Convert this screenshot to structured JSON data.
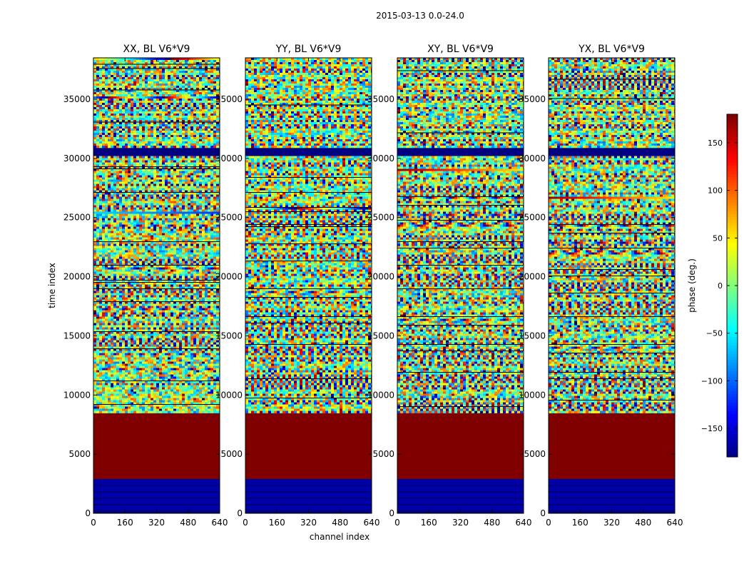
{
  "chart_data": {
    "type": "heatmap",
    "suptitle": "2015-03-13 0.0-24.0",
    "xlabel": "channel index",
    "ylabel": "time index",
    "xlim": [
      0,
      640
    ],
    "ylim": [
      0,
      38500
    ],
    "xticks": [
      0,
      160,
      320,
      480,
      640
    ],
    "yticks": [
      0,
      5000,
      10000,
      15000,
      20000,
      25000,
      30000,
      35000
    ],
    "panels": [
      {
        "title": "XX, BL V6*V9",
        "polarization": "XX"
      },
      {
        "title": "YY, BL V6*V9",
        "polarization": "YY"
      },
      {
        "title": "XY, BL V6*V9",
        "polarization": "XY"
      },
      {
        "title": "YX, BL V6*V9",
        "polarization": "YX"
      }
    ],
    "colorbar": {
      "label": "phase (deg.)",
      "colormap": "jet",
      "range": [
        -180,
        180
      ],
      "ticks": [
        -150,
        -100,
        -50,
        0,
        50,
        100,
        150
      ]
    },
    "regions": [
      {
        "t": [
          0,
          300
        ],
        "phase": -180,
        "kind": "flagged"
      },
      {
        "t": [
          300,
          2900
        ],
        "phase": -165,
        "kind": "flagged-mostly"
      },
      {
        "t": [
          2900,
          8500
        ],
        "phase": 180,
        "kind": "flagged"
      },
      {
        "t": [
          8500,
          30200
        ],
        "phase": null,
        "kind": "noise"
      },
      {
        "t": [
          30200,
          30900
        ],
        "phase": -180,
        "kind": "flagged"
      },
      {
        "t": [
          30900,
          38500
        ],
        "phase": null,
        "kind": "noise"
      }
    ]
  }
}
